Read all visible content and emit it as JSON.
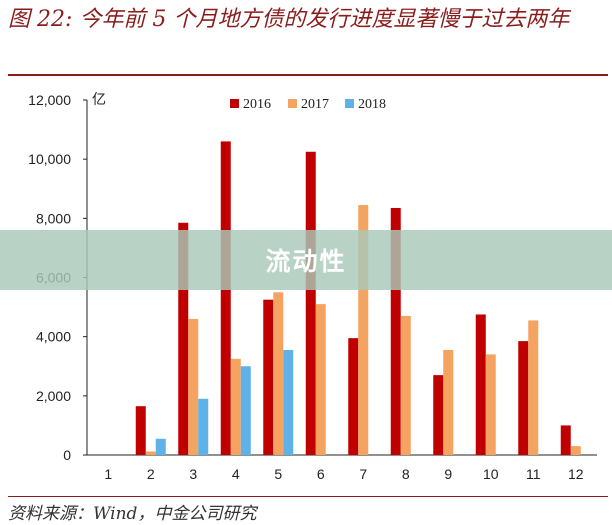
{
  "header": {
    "title": "图 22: 今年前 5 个月地方债的发行进度显著慢于过去两年"
  },
  "footer": {
    "source": "资料来源：Wind，中金公司研究"
  },
  "watermark": {
    "text": "流动性"
  },
  "colors": {
    "title": "#8b1c1c",
    "s2016": "#c00000",
    "s2017": "#f4a460",
    "s2018": "#5eb2e8"
  },
  "chart_data": {
    "type": "bar",
    "categories": [
      "1",
      "2",
      "3",
      "4",
      "5",
      "6",
      "7",
      "8",
      "9",
      "10",
      "11",
      "12"
    ],
    "series": [
      {
        "name": "2016",
        "values": [
          0,
          1650,
          7850,
          10600,
          5250,
          10250,
          3950,
          8350,
          2700,
          4750,
          3850,
          1000
        ]
      },
      {
        "name": "2017",
        "values": [
          0,
          120,
          4600,
          3250,
          5500,
          5100,
          8450,
          4700,
          3550,
          3400,
          4550,
          300
        ]
      },
      {
        "name": "2018",
        "values": [
          0,
          550,
          1900,
          3000,
          3550,
          null,
          null,
          null,
          null,
          null,
          null,
          null
        ]
      }
    ],
    "ylim": [
      0,
      12000
    ],
    "yticks": [
      0,
      2000,
      4000,
      6000,
      8000,
      10000,
      12000
    ],
    "ytick_labels": [
      "0",
      "2,000",
      "4,000",
      "6,000",
      "8,000",
      "10,000",
      "12,000"
    ],
    "yunit": "亿",
    "grid": false,
    "legend": "top-center"
  }
}
